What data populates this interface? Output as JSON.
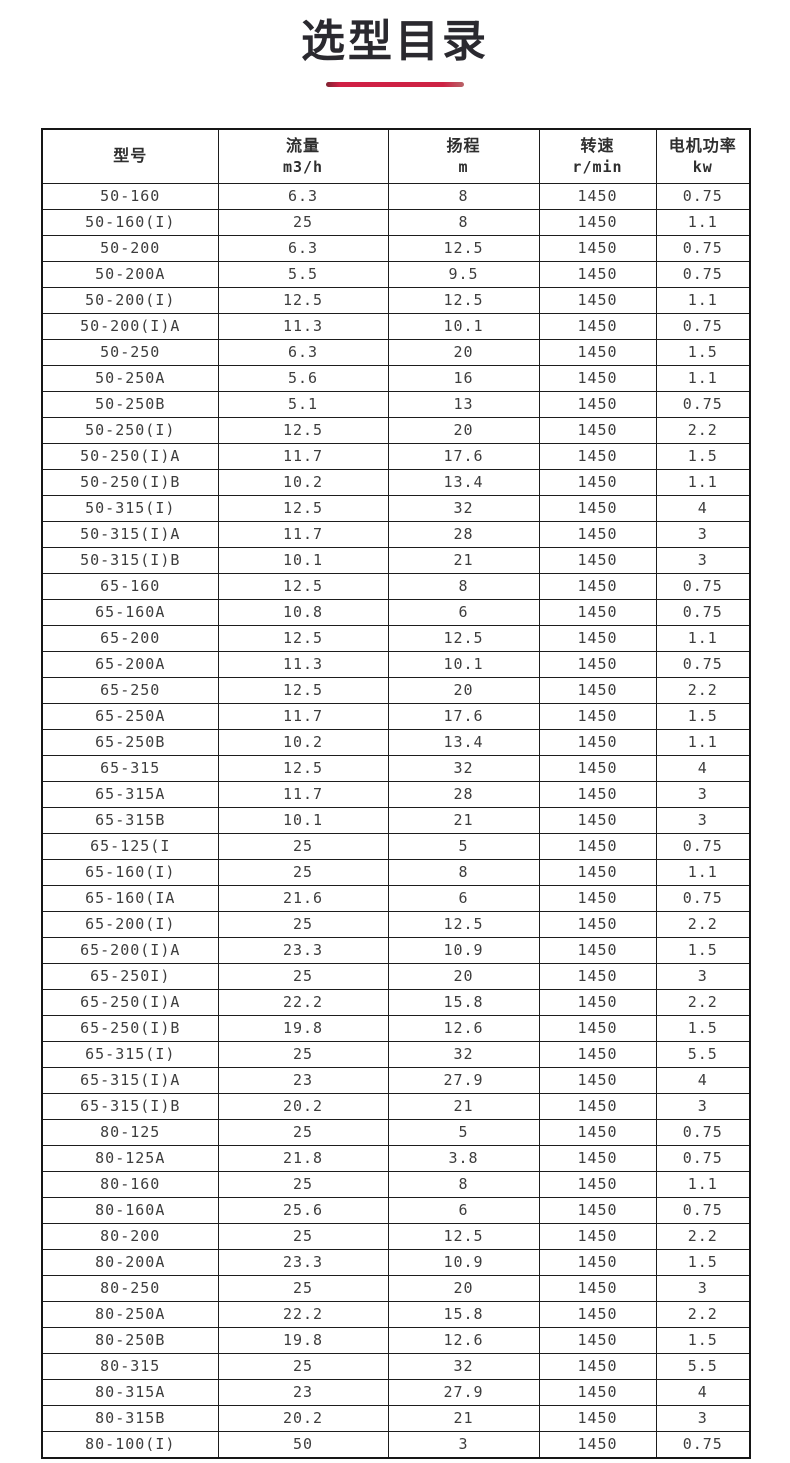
{
  "page": {
    "title": "选型目录"
  },
  "colors": {
    "accent_line": "#cd2244",
    "title_text": "#2a292f",
    "table_border": "#1d1d1d",
    "cell_text": "#3d3d3d"
  },
  "table": {
    "headers": [
      {
        "label": "型号",
        "unit": ""
      },
      {
        "label": "流量",
        "unit": "m3/h"
      },
      {
        "label": "扬程",
        "unit": "m"
      },
      {
        "label": "转速",
        "unit": "r/min"
      },
      {
        "label": "电机功率",
        "unit": "kw"
      }
    ],
    "rows": [
      [
        "50-160",
        "6.3",
        "8",
        "1450",
        "0.75"
      ],
      [
        "50-160(I)",
        "25",
        "8",
        "1450",
        "1.1"
      ],
      [
        "50-200",
        "6.3",
        "12.5",
        "1450",
        "0.75"
      ],
      [
        "50-200A",
        "5.5",
        "9.5",
        "1450",
        "0.75"
      ],
      [
        "50-200(I)",
        "12.5",
        "12.5",
        "1450",
        "1.1"
      ],
      [
        "50-200(I)A",
        "11.3",
        "10.1",
        "1450",
        "0.75"
      ],
      [
        "50-250",
        "6.3",
        "20",
        "1450",
        "1.5"
      ],
      [
        "50-250A",
        "5.6",
        "16",
        "1450",
        "1.1"
      ],
      [
        "50-250B",
        "5.1",
        "13",
        "1450",
        "0.75"
      ],
      [
        "50-250(I)",
        "12.5",
        "20",
        "1450",
        "2.2"
      ],
      [
        "50-250(I)A",
        "11.7",
        "17.6",
        "1450",
        "1.5"
      ],
      [
        "50-250(I)B",
        "10.2",
        "13.4",
        "1450",
        "1.1"
      ],
      [
        "50-315(I)",
        "12.5",
        "32",
        "1450",
        "4"
      ],
      [
        "50-315(I)A",
        "11.7",
        "28",
        "1450",
        "3"
      ],
      [
        "50-315(I)B",
        "10.1",
        "21",
        "1450",
        "3"
      ],
      [
        "65-160",
        "12.5",
        "8",
        "1450",
        "0.75"
      ],
      [
        "65-160A",
        "10.8",
        "6",
        "1450",
        "0.75"
      ],
      [
        "65-200",
        "12.5",
        "12.5",
        "1450",
        "1.1"
      ],
      [
        "65-200A",
        "11.3",
        "10.1",
        "1450",
        "0.75"
      ],
      [
        "65-250",
        "12.5",
        "20",
        "1450",
        "2.2"
      ],
      [
        "65-250A",
        "11.7",
        "17.6",
        "1450",
        "1.5"
      ],
      [
        "65-250B",
        "10.2",
        "13.4",
        "1450",
        "1.1"
      ],
      [
        "65-315",
        "12.5",
        "32",
        "1450",
        "4"
      ],
      [
        "65-315A",
        "11.7",
        "28",
        "1450",
        "3"
      ],
      [
        "65-315B",
        "10.1",
        "21",
        "1450",
        "3"
      ],
      [
        "65-125(I",
        "25",
        "5",
        "1450",
        "0.75"
      ],
      [
        "65-160(I)",
        "25",
        "8",
        "1450",
        "1.1"
      ],
      [
        "65-160(IA",
        "21.6",
        "6",
        "1450",
        "0.75"
      ],
      [
        "65-200(I)",
        "25",
        "12.5",
        "1450",
        "2.2"
      ],
      [
        "65-200(I)A",
        "23.3",
        "10.9",
        "1450",
        "1.5"
      ],
      [
        "65-250I)",
        "25",
        "20",
        "1450",
        "3"
      ],
      [
        "65-250(I)A",
        "22.2",
        "15.8",
        "1450",
        "2.2"
      ],
      [
        "65-250(I)B",
        "19.8",
        "12.6",
        "1450",
        "1.5"
      ],
      [
        "65-315(I)",
        "25",
        "32",
        "1450",
        "5.5"
      ],
      [
        "65-315(I)A",
        "23",
        "27.9",
        "1450",
        "4"
      ],
      [
        "65-315(I)B",
        "20.2",
        "21",
        "1450",
        "3"
      ],
      [
        "80-125",
        "25",
        "5",
        "1450",
        "0.75"
      ],
      [
        "80-125A",
        "21.8",
        "3.8",
        "1450",
        "0.75"
      ],
      [
        "80-160",
        "25",
        "8",
        "1450",
        "1.1"
      ],
      [
        "80-160A",
        "25.6",
        "6",
        "1450",
        "0.75"
      ],
      [
        "80-200",
        "25",
        "12.5",
        "1450",
        "2.2"
      ],
      [
        "80-200A",
        "23.3",
        "10.9",
        "1450",
        "1.5"
      ],
      [
        "80-250",
        "25",
        "20",
        "1450",
        "3"
      ],
      [
        "80-250A",
        "22.2",
        "15.8",
        "1450",
        "2.2"
      ],
      [
        "80-250B",
        "19.8",
        "12.6",
        "1450",
        "1.5"
      ],
      [
        "80-315",
        "25",
        "32",
        "1450",
        "5.5"
      ],
      [
        "80-315A",
        "23",
        "27.9",
        "1450",
        "4"
      ],
      [
        "80-315B",
        "20.2",
        "21",
        "1450",
        "3"
      ],
      [
        "80-100(I)",
        "50",
        "3",
        "1450",
        "0.75"
      ]
    ],
    "column_names": [
      "model",
      "flow",
      "head",
      "speed",
      "power"
    ]
  }
}
